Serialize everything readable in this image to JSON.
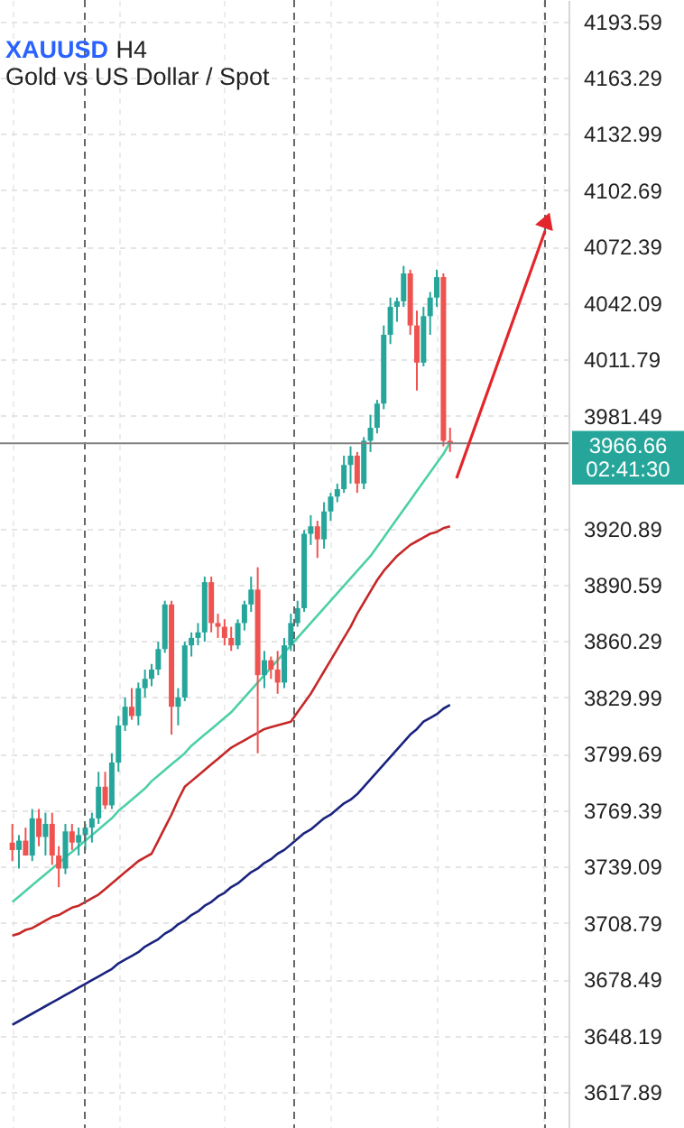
{
  "chart_data": {
    "type": "candlestick",
    "title": "XAUUSD",
    "subtitle": "Gold vs US Dollar / Spot",
    "annotations": [
      "H4"
    ],
    "categories": [
      null,
      null,
      null,
      null,
      null,
      null,
      null,
      null,
      null,
      null,
      null,
      null,
      null,
      null,
      null,
      null,
      null,
      null,
      null,
      null,
      null,
      null,
      null,
      null,
      null,
      null,
      null,
      null,
      null,
      null,
      null,
      null,
      null,
      null,
      null,
      null,
      null,
      null,
      null,
      null,
      null,
      null,
      null,
      null,
      null,
      null,
      null,
      null,
      null,
      null,
      null,
      null,
      null,
      null,
      null,
      null,
      null,
      null,
      null,
      null,
      null,
      null,
      null,
      null,
      null,
      null,
      null,
      null,
      null,
      null,
      null,
      null,
      null,
      null,
      null,
      null,
      null,
      null,
      null,
      null,
      null,
      null,
      null
    ],
    "ohlc": [
      [
        3752,
        3762,
        3742,
        3748
      ],
      [
        3748,
        3756,
        3738,
        3753
      ],
      [
        3753,
        3760,
        3745,
        3745
      ],
      [
        3745,
        3770,
        3742,
        3765
      ],
      [
        3765,
        3770,
        3750,
        3755
      ],
      [
        3755,
        3768,
        3745,
        3762
      ],
      [
        3762,
        3768,
        3740,
        3745
      ],
      [
        3745,
        3750,
        3728,
        3738
      ],
      [
        3738,
        3762,
        3735,
        3758
      ],
      [
        3758,
        3762,
        3748,
        3752
      ],
      [
        3752,
        3760,
        3745,
        3756
      ],
      [
        3756,
        3762,
        3748,
        3760
      ],
      [
        3760,
        3768,
        3752,
        3765
      ],
      [
        3765,
        3790,
        3762,
        3782
      ],
      [
        3782,
        3790,
        3770,
        3772
      ],
      [
        3772,
        3800,
        3770,
        3795
      ],
      [
        3795,
        3820,
        3790,
        3815
      ],
      [
        3815,
        3830,
        3812,
        3825
      ],
      [
        3825,
        3835,
        3818,
        3820
      ],
      [
        3820,
        3838,
        3815,
        3835
      ],
      [
        3835,
        3845,
        3830,
        3840
      ],
      [
        3840,
        3848,
        3836,
        3845
      ],
      [
        3845,
        3860,
        3842,
        3856
      ],
      [
        3856,
        3882,
        3854,
        3880
      ],
      [
        3880,
        3882,
        3810,
        3825
      ],
      [
        3825,
        3835,
        3815,
        3830
      ],
      [
        3830,
        3860,
        3828,
        3858
      ],
      [
        3858,
        3865,
        3852,
        3862
      ],
      [
        3862,
        3870,
        3858,
        3865
      ],
      [
        3865,
        3895,
        3860,
        3892
      ],
      [
        3892,
        3895,
        3865,
        3870
      ],
      [
        3870,
        3875,
        3862,
        3868
      ],
      [
        3868,
        3872,
        3858,
        3862
      ],
      [
        3862,
        3868,
        3855,
        3858
      ],
      [
        3858,
        3872,
        3856,
        3870
      ],
      [
        3870,
        3882,
        3866,
        3880
      ],
      [
        3880,
        3895,
        3876,
        3888
      ],
      [
        3888,
        3900,
        3800,
        3842
      ],
      [
        3842,
        3855,
        3835,
        3850
      ],
      [
        3850,
        3852,
        3840,
        3845
      ],
      [
        3845,
        3855,
        3832,
        3838
      ],
      [
        3838,
        3862,
        3835,
        3858
      ],
      [
        3858,
        3875,
        3855,
        3870
      ],
      [
        3870,
        3882,
        3868,
        3878
      ],
      [
        3878,
        3920,
        3876,
        3918
      ],
      [
        3918,
        3928,
        3912,
        3922
      ],
      [
        3922,
        3925,
        3905,
        3915
      ],
      [
        3915,
        3935,
        3910,
        3930
      ],
      [
        3930,
        3940,
        3925,
        3938
      ],
      [
        3938,
        3945,
        3935,
        3942
      ],
      [
        3942,
        3960,
        3940,
        3955
      ],
      [
        3955,
        3965,
        3945,
        3960
      ],
      [
        3960,
        3962,
        3940,
        3945
      ],
      [
        3945,
        3970,
        3942,
        3968
      ],
      [
        3968,
        3982,
        3962,
        3975
      ],
      [
        3975,
        3990,
        3972,
        3988
      ],
      [
        3988,
        4030,
        3985,
        4025
      ],
      [
        4025,
        4045,
        4020,
        4040
      ],
      [
        4040,
        4045,
        4032,
        4043
      ],
      [
        4043,
        4062,
        4040,
        4058
      ],
      [
        4058,
        4060,
        4025,
        4030
      ],
      [
        4030,
        4038,
        3995,
        4010
      ],
      [
        4010,
        4040,
        4008,
        4035
      ],
      [
        4035,
        4048,
        4025,
        4045
      ],
      [
        4045,
        4060,
        4040,
        4056
      ],
      [
        4056,
        4058,
        3965,
        3968
      ],
      [
        3968,
        3975,
        3962,
        3966.66
      ],
      null,
      null,
      null,
      null,
      null,
      null,
      null,
      null,
      null,
      null,
      null,
      null,
      null,
      null,
      null,
      null
    ],
    "colors": [
      "#ef5350",
      "#26a69a",
      "#ef5350",
      "#26a69a",
      "#ef5350",
      "#26a69a",
      "#ef5350",
      "#ef5350",
      "#26a69a",
      "#ef5350",
      "#26a69a",
      "#26a69a",
      "#26a69a",
      "#26a69a",
      "#ef5350",
      "#26a69a",
      "#26a69a",
      "#26a69a",
      "#ef5350",
      "#26a69a",
      "#26a69a",
      "#26a69a",
      "#26a69a",
      "#26a69a",
      "#ef5350",
      "#26a69a",
      "#26a69a",
      "#26a69a",
      "#26a69a",
      "#26a69a",
      "#ef5350",
      "#ef5350",
      "#ef5350",
      "#ef5350",
      "#26a69a",
      "#26a69a",
      "#26a69a",
      "#ef5350",
      "#26a69a",
      "#ef5350",
      "#ef5350",
      "#26a69a",
      "#26a69a",
      "#26a69a",
      "#26a69a",
      "#26a69a",
      "#ef5350",
      "#26a69a",
      "#26a69a",
      "#26a69a",
      "#26a69a",
      "#26a69a",
      "#ef5350",
      "#26a69a",
      "#26a69a",
      "#26a69a",
      "#26a69a",
      "#26a69a",
      "#26a69a",
      "#26a69a",
      "#ef5350",
      "#ef5350",
      "#26a69a",
      "#26a69a",
      "#26a69a",
      "#ef5350",
      "#ef5350",
      null,
      null,
      null,
      null,
      null,
      null,
      null,
      null,
      null,
      null,
      null,
      null,
      null,
      null,
      null,
      null
    ],
    "series": [
      {
        "type": "line",
        "color": "#4dd0a8",
        "values": [
          3720,
          3723,
          3726,
          3729,
          3732,
          3735,
          3738,
          3741,
          3744,
          3747,
          3750,
          3753,
          3756,
          3759,
          3762,
          3765,
          3769,
          3772,
          3775,
          3778,
          3781,
          3785,
          3788,
          3791,
          3794,
          3797,
          3800,
          3804,
          3807,
          3810,
          3813,
          3816,
          3819,
          3822,
          3826,
          3830,
          3834,
          3838,
          3842,
          3846,
          3850,
          3854,
          3858,
          3862,
          3866,
          3870,
          3874,
          3878,
          3882,
          3886,
          3890,
          3894,
          3898,
          3902,
          3906,
          3911,
          3916,
          3921,
          3926,
          3931,
          3936,
          3941,
          3946,
          3951,
          3956,
          3961,
          3967,
          null,
          null,
          null,
          null,
          null,
          null,
          null,
          null,
          null,
          null,
          null,
          null,
          null,
          null,
          null,
          null
        ]
      },
      {
        "type": "line",
        "color": "#c62828",
        "values": [
          3702,
          3703,
          3705,
          3706,
          3708,
          3710,
          3712,
          3713,
          3715,
          3717,
          3718,
          3720,
          3722,
          3724,
          3727,
          3730,
          3733,
          3736,
          3739,
          3742,
          3744,
          3746,
          3753,
          3760,
          3767,
          3775,
          3782,
          3785,
          3788,
          3791,
          3794,
          3797,
          3800,
          3803,
          3805,
          3807,
          3809,
          3811,
          3813,
          3814,
          3815,
          3816,
          3817,
          3822,
          3827,
          3832,
          3838,
          3844,
          3850,
          3856,
          3862,
          3868,
          3875,
          3881,
          3887,
          3893,
          3898,
          3902,
          3906,
          3909,
          3912,
          3914,
          3916,
          3918,
          3919,
          3921,
          3922,
          null,
          null,
          null,
          null,
          null,
          null,
          null,
          null,
          null,
          null,
          null,
          null,
          null,
          null,
          null,
          null
        ]
      },
      {
        "type": "line",
        "color": "#1a237e",
        "values": [
          3654,
          3656,
          3658,
          3660,
          3662,
          3664,
          3666,
          3668,
          3670,
          3672,
          3674,
          3676,
          3678,
          3680,
          3682,
          3684,
          3687,
          3689,
          3691,
          3693,
          3696,
          3698,
          3700,
          3703,
          3705,
          3708,
          3710,
          3713,
          3715,
          3718,
          3720,
          3723,
          3725,
          3728,
          3730,
          3733,
          3736,
          3738,
          3741,
          3743,
          3746,
          3748,
          3751,
          3754,
          3757,
          3759,
          3762,
          3765,
          3767,
          3770,
          3773,
          3775,
          3778,
          3782,
          3786,
          3790,
          3794,
          3798,
          3802,
          3806,
          3810,
          3813,
          3817,
          3819,
          3821,
          3824,
          3826,
          null,
          null,
          null,
          null,
          null,
          null,
          null,
          null,
          null,
          null,
          null,
          null,
          null,
          null,
          null,
          null
        ]
      }
    ],
    "ylim": [
      3598.5,
      4205
    ],
    "yticks": [
      4193.59,
      4163.29,
      4132.99,
      4102.69,
      4072.39,
      4042.09,
      4011.79,
      3981.49,
      3920.89,
      3890.59,
      3860.29,
      3829.99,
      3799.69,
      3769.39,
      3739.09,
      3708.79,
      3678.49,
      3648.19,
      3617.89
    ],
    "ref_lines": [
      {
        "axis": "y",
        "value": 3966.66,
        "label": "3966.66\n02:41:30",
        "color": "#808080"
      }
    ],
    "grid": true
  }
}
